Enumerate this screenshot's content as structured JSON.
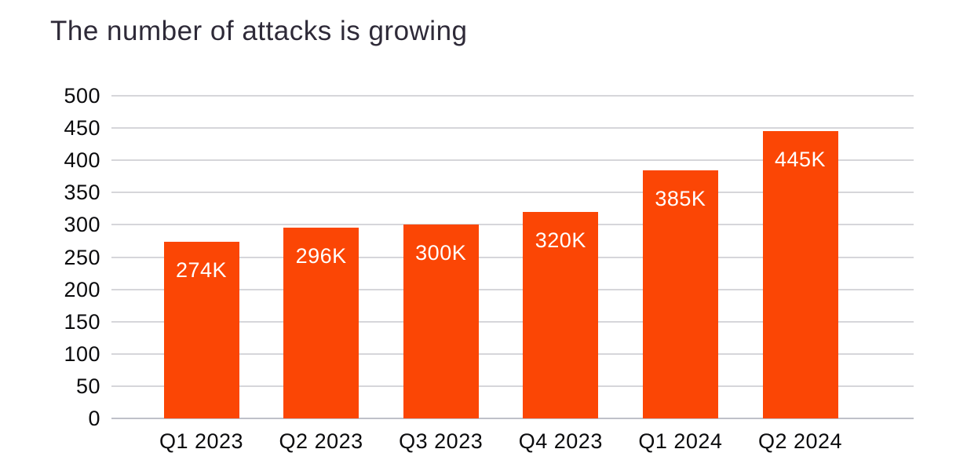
{
  "title": "The number of attacks is growing",
  "colors": {
    "bar": "#fb4605",
    "bar_label_text": "#ffffff",
    "title_text": "#2e2a38",
    "axis_text": "#0b0b0d",
    "gridline": "#d6d6da",
    "background": "#ffffff"
  },
  "chart_data": {
    "type": "bar",
    "title": "The number of attacks is growing",
    "categories": [
      "Q1 2023",
      "Q2 2023",
      "Q3 2023",
      "Q4 2023",
      "Q1 2024",
      "Q2 2024"
    ],
    "values": [
      274,
      296,
      300,
      320,
      385,
      445
    ],
    "value_labels": [
      "274K",
      "296K",
      "300K",
      "320K",
      "385K",
      "445K"
    ],
    "unit": "thousands of attacks",
    "xlabel": "",
    "ylabel": "",
    "ylim": [
      0,
      500
    ],
    "yticks": [
      0,
      50,
      100,
      150,
      200,
      250,
      300,
      350,
      400,
      450,
      500
    ],
    "grid": "horizontal",
    "legend": "none",
    "bar_color": "#fb4605",
    "value_label_position": "inside-top",
    "value_label_color": "#ffffff"
  }
}
